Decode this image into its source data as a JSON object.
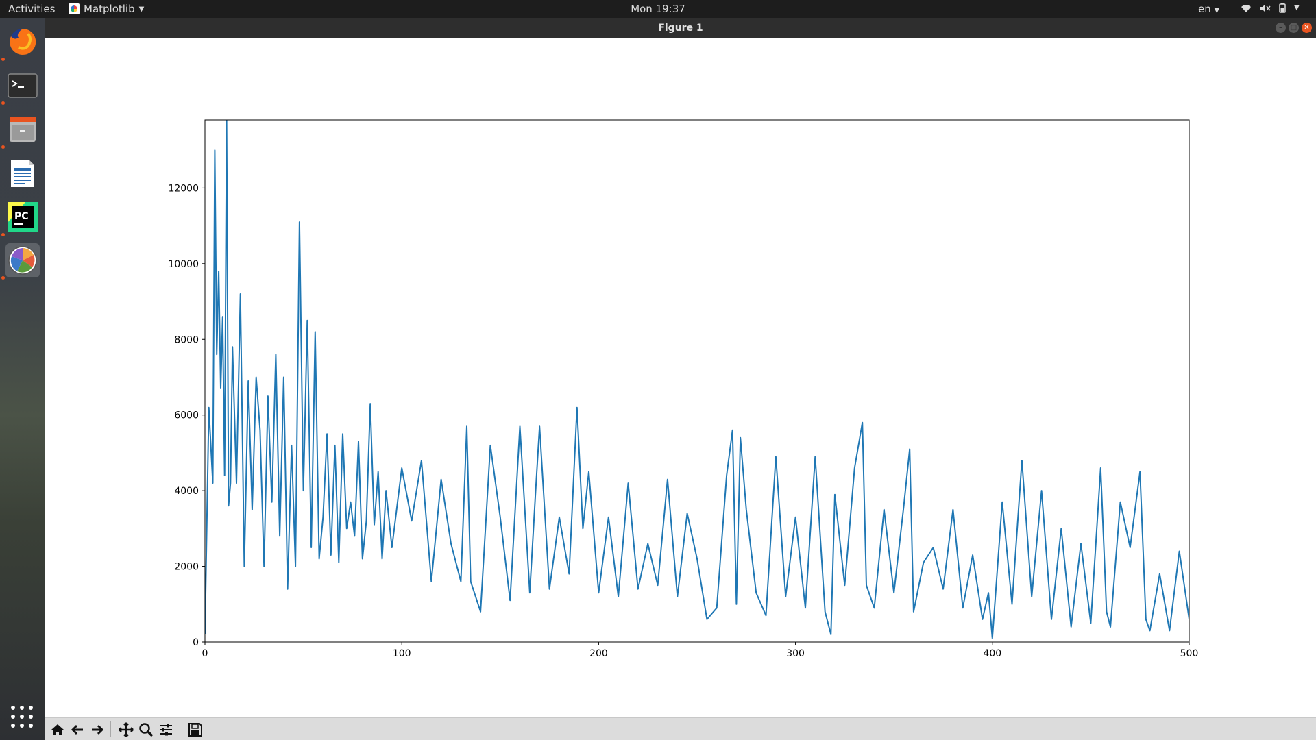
{
  "topbar": {
    "activities": "Activities",
    "app_name": "Matplotlib",
    "clock": "Mon 19:37",
    "language": "en"
  },
  "dock": {
    "items": [
      {
        "name": "Firefox",
        "icon": "firefox-icon",
        "running": true
      },
      {
        "name": "Terminal",
        "icon": "terminal-icon",
        "running": true
      },
      {
        "name": "Files",
        "icon": "files-icon",
        "running": true
      },
      {
        "name": "LibreOffice Writer",
        "icon": "writer-icon",
        "running": false
      },
      {
        "name": "PyCharm",
        "icon": "pycharm-icon",
        "running": true
      },
      {
        "name": "Matplotlib",
        "icon": "matplotlib-icon",
        "running": true,
        "active": true
      }
    ]
  },
  "window": {
    "title": "Figure 1"
  },
  "toolbar": {
    "buttons": [
      "home-icon",
      "back-icon",
      "forward-icon",
      "pan-icon",
      "zoom-icon",
      "configure-subplots-icon",
      "save-icon"
    ]
  },
  "chart_data": {
    "type": "line",
    "color": "#1f77b4",
    "title": "",
    "xlabel": "",
    "ylabel": "",
    "xlim": [
      0,
      500
    ],
    "ylim": [
      0,
      13800
    ],
    "xticks": [
      0,
      100,
      200,
      300,
      400,
      500
    ],
    "yticks": [
      0,
      2000,
      4000,
      6000,
      8000,
      10000,
      12000
    ],
    "grid": false,
    "legend": "none",
    "x": [
      0,
      2,
      4,
      5,
      6,
      7,
      8,
      9,
      10,
      11,
      12,
      13,
      14,
      16,
      18,
      20,
      22,
      24,
      26,
      28,
      30,
      32,
      34,
      36,
      38,
      40,
      42,
      44,
      46,
      48,
      50,
      52,
      54,
      56,
      58,
      60,
      62,
      64,
      66,
      68,
      70,
      72,
      74,
      76,
      78,
      80,
      82,
      84,
      86,
      88,
      90,
      92,
      95,
      100,
      105,
      110,
      115,
      120,
      125,
      130,
      133,
      135,
      140,
      145,
      150,
      155,
      160,
      165,
      168,
      170,
      175,
      180,
      185,
      189,
      192,
      195,
      200,
      205,
      210,
      215,
      220,
      225,
      230,
      235,
      240,
      245,
      250,
      255,
      260,
      265,
      268,
      270,
      272,
      275,
      280,
      285,
      290,
      295,
      300,
      305,
      310,
      315,
      318,
      320,
      325,
      330,
      334,
      336,
      340,
      345,
      350,
      355,
      358,
      360,
      365,
      370,
      375,
      380,
      385,
      390,
      395,
      398,
      400,
      405,
      410,
      415,
      420,
      425,
      430,
      435,
      440,
      445,
      450,
      455,
      458,
      460,
      465,
      470,
      475,
      478,
      480,
      485,
      490,
      495,
      500
    ],
    "y": [
      200,
      6200,
      4200,
      13000,
      7600,
      9800,
      6700,
      8600,
      4400,
      13800,
      3600,
      4200,
      7800,
      4200,
      9200,
      2000,
      6900,
      3500,
      7000,
      5600,
      2000,
      6500,
      3700,
      7600,
      2800,
      7000,
      1400,
      5200,
      2000,
      11100,
      4000,
      8500,
      2500,
      8200,
      2200,
      3300,
      5500,
      2300,
      5200,
      2100,
      5500,
      3000,
      3700,
      2800,
      5300,
      2200,
      3200,
      6300,
      3100,
      4500,
      2200,
      4000,
      2500,
      4600,
      3200,
      4800,
      1600,
      4300,
      2600,
      1600,
      5700,
      1600,
      800,
      5200,
      3300,
      1100,
      5700,
      1300,
      4000,
      5700,
      1400,
      3300,
      1800,
      6200,
      3000,
      4500,
      1300,
      3300,
      1200,
      4200,
      1400,
      2600,
      1500,
      4300,
      1200,
      3400,
      2200,
      600,
      900,
      4400,
      5600,
      1000,
      5400,
      3500,
      1300,
      700,
      4900,
      1200,
      3300,
      900,
      4900,
      800,
      200,
      3900,
      1500,
      4600,
      5800,
      1500,
      900,
      3500,
      1300,
      3600,
      5100,
      800,
      2100,
      2500,
      1400,
      3500,
      900,
      2300,
      600,
      1300,
      100,
      3700,
      1000,
      4800,
      1200,
      4000,
      600,
      3000,
      400,
      2600,
      500,
      4600,
      800,
      400,
      3700,
      2500,
      4500,
      600,
      300,
      1800,
      300,
      2400,
      600
    ]
  }
}
